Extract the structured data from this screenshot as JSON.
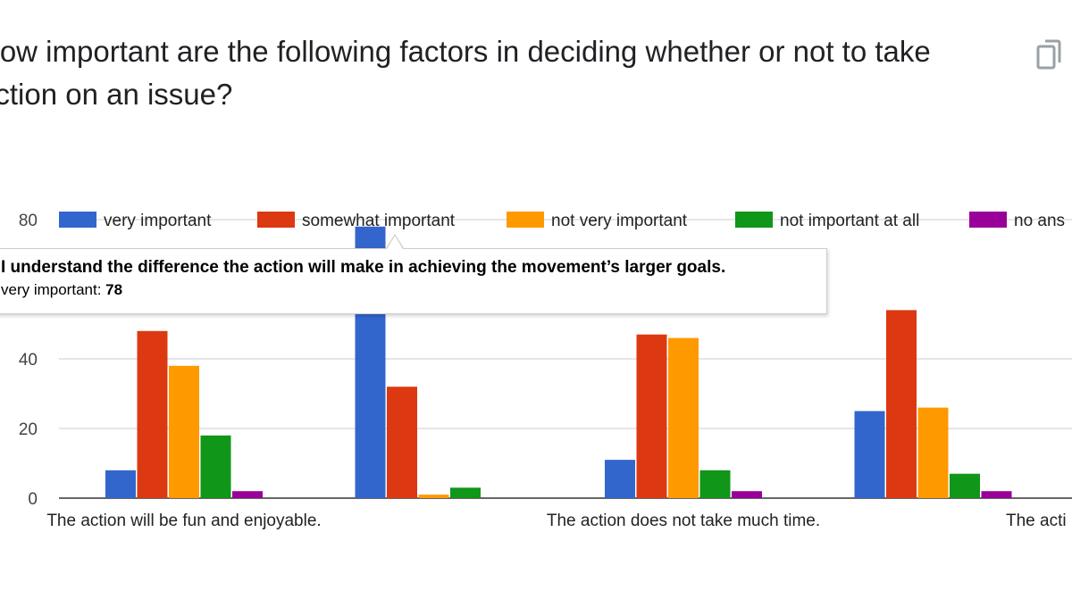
{
  "question": {
    "title": "How important are the following factors in deciding whether or not to take action on an issue?"
  },
  "copy_button": {
    "icon": "copy-icon"
  },
  "tooltip": {
    "category": "I understand the difference the action will make in achieving the movement’s larger goals.",
    "series": "very important",
    "value": "78"
  },
  "chart_data": {
    "type": "bar",
    "title": "",
    "xlabel": "",
    "ylabel": "",
    "ylim": [
      0,
      80
    ],
    "yticks": [
      0,
      20,
      40,
      80
    ],
    "grid": true,
    "legend_position": "top",
    "categories": [
      "The action will be fun and enjoyable.",
      "I understand the difference the action will make in achieving the movement’s larger goals.",
      "The action does not take much time.",
      "The acti"
    ],
    "category_labels_shown": [
      "The action will be fun and enjoyable.",
      "",
      "The action does not take much time.",
      "The acti"
    ],
    "series": [
      {
        "name": "very important",
        "color": "#3366cc",
        "values": [
          8,
          78,
          11,
          25
        ]
      },
      {
        "name": "somewhat important",
        "color": "#dc3912",
        "values": [
          48,
          32,
          47,
          54
        ]
      },
      {
        "name": "not very important",
        "color": "#ff9900",
        "values": [
          38,
          1,
          46,
          26
        ]
      },
      {
        "name": "not important at all",
        "color": "#109618",
        "values": [
          18,
          3,
          8,
          7
        ]
      },
      {
        "name": "no ans",
        "color": "#990099",
        "values": [
          2,
          0,
          2,
          2
        ]
      }
    ]
  }
}
